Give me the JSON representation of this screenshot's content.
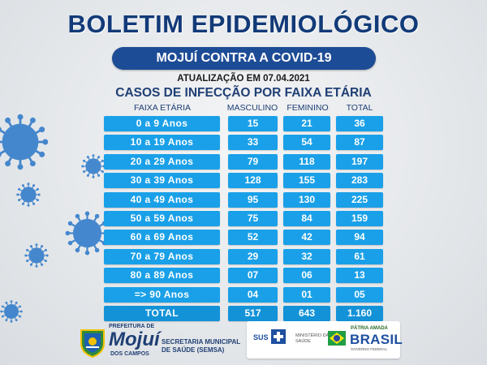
{
  "header": {
    "title": "BOLETIM EPIDEMIOLÓGICO",
    "subtitle": "MOJUÍ CONTRA A COVID-19",
    "update": "ATUALIZAÇÃO EM 07.04.2021",
    "section_title": "CASOS DE INFECÇÃO POR FAIXA ETÁRIA"
  },
  "table": {
    "headers": {
      "age": "FAIXA ETÁRIA",
      "male": "MASCULINO",
      "female": "FEMININO",
      "total": "TOTAL"
    },
    "rows": [
      {
        "age": "0 a 9 Anos",
        "male": "15",
        "female": "21",
        "total": "36"
      },
      {
        "age": "10 a 19 Anos",
        "male": "33",
        "female": "54",
        "total": "87"
      },
      {
        "age": "20 a 29 Anos",
        "male": "79",
        "female": "118",
        "total": "197"
      },
      {
        "age": "30 a 39 Anos",
        "male": "128",
        "female": "155",
        "total": "283"
      },
      {
        "age": "40 a 49 Anos",
        "male": "95",
        "female": "130",
        "total": "225"
      },
      {
        "age": "50 a 59 Anos",
        "male": "75",
        "female": "84",
        "total": "159"
      },
      {
        "age": "60 a 69 Anos",
        "male": "52",
        "female": "42",
        "total": "94"
      },
      {
        "age": "70 a 79 Anos",
        "male": "29",
        "female": "32",
        "total": "61"
      },
      {
        "age": "80 a 89 Anos",
        "male": "07",
        "female": "06",
        "total": "13"
      },
      {
        "age": "=> 90 Anos",
        "male": "04",
        "female": "01",
        "total": "05"
      }
    ],
    "total_row": {
      "age": "TOTAL",
      "male": "517",
      "female": "643",
      "total": "1.160"
    }
  },
  "footer": {
    "prefeitura": "PREFEITURA DE",
    "city": "Mojuí",
    "dos_campos": "DOS CAMPOS",
    "secretaria_line1": "SECRETARIA MUNICIPAL",
    "secretaria_line2": "DE SAÚDE (SEMSA)",
    "sus": "SUS",
    "ministerio_line1": "MINISTÉRIO DA",
    "ministerio_line2": "SAÚDE",
    "patria": "PÁTRIA AMADA",
    "brasil": "BRASIL",
    "governo": "GOVERNO FEDERAL"
  },
  "colors": {
    "title": "#123a78",
    "pill": "#1d4c96",
    "cell": "#1aa0e8",
    "virus": "#2a77c9"
  },
  "icons": [
    "coronavirus-icon",
    "municipal-crest-icon",
    "sus-cross-icon",
    "brazil-flag-icon"
  ]
}
